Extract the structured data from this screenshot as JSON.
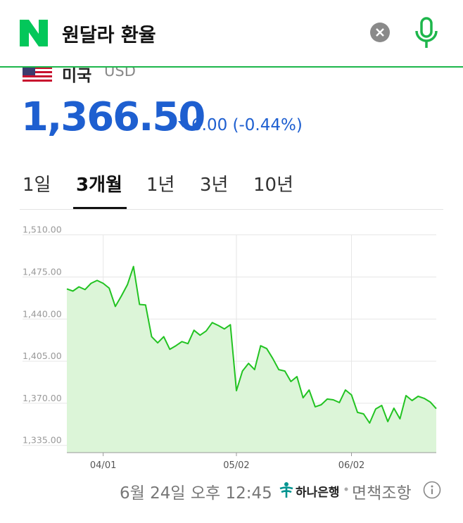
{
  "header": {
    "title": "원달라 환율"
  },
  "currency": {
    "country": "미국",
    "code": "USD",
    "price": "1,366.50",
    "change": "6.00",
    "change_pct": "(-0.44%)"
  },
  "tabs": {
    "items": [
      "1일",
      "3개월",
      "1년",
      "3년",
      "10년"
    ],
    "selected": 1
  },
  "chart_data": {
    "type": "area",
    "color": "#22c322",
    "fill_color": "#dcf5d8",
    "grid": true,
    "categories": [
      null,
      null,
      null,
      null,
      null,
      null,
      "04/01",
      null,
      null,
      null,
      null,
      null,
      null,
      null,
      null,
      null,
      null,
      null,
      null,
      null,
      null,
      null,
      null,
      null,
      null,
      null,
      null,
      null,
      "05/02",
      null,
      null,
      null,
      null,
      null,
      null,
      null,
      null,
      null,
      null,
      null,
      null,
      null,
      null,
      null,
      null,
      null,
      null,
      "06/02",
      null,
      null,
      null,
      null,
      null,
      null,
      null,
      null,
      null,
      null,
      null,
      null,
      null,
      null
    ],
    "values": [
      1465.1,
      1463.3,
      1466.8,
      1464.5,
      1469.7,
      1472.1,
      1469.7,
      1465.7,
      1450.5,
      1459.2,
      1468.6,
      1483.7,
      1452.2,
      1451.7,
      1425.4,
      1420.2,
      1425.4,
      1414.9,
      1417.8,
      1421.3,
      1419.6,
      1430.7,
      1426.6,
      1430.1,
      1437.1,
      1434.7,
      1431.8,
      1435.3,
      1380.5,
      1396.8,
      1403.2,
      1398.0,
      1417.8,
      1415.5,
      1407.3,
      1398.0,
      1396.8,
      1388.1,
      1392.2,
      1374.6,
      1381.1,
      1367.1,
      1368.8,
      1373.5,
      1372.9,
      1370.6,
      1381.1,
      1377.0,
      1362.4,
      1361.2,
      1353.6,
      1365.3,
      1368.2,
      1354.8,
      1365.9,
      1357.1,
      1376.4,
      1372.3,
      1375.8,
      1374.1,
      1371.1,
      1365.5
    ],
    "ylim": [
      1329,
      1518
    ],
    "yticks": [
      {
        "value": 1335,
        "label": "1,335.00"
      },
      {
        "value": 1370,
        "label": "1,370.00"
      },
      {
        "value": 1405,
        "label": "1,405.00"
      },
      {
        "value": 1440,
        "label": "1,440.00"
      },
      {
        "value": 1475,
        "label": "1,475.00"
      },
      {
        "value": 1510,
        "label": "1,510.00"
      }
    ]
  },
  "footer": {
    "timestamp": "6월 24일 오후 12:45",
    "bank": "하나은행",
    "disclaimer": "면책조항"
  }
}
